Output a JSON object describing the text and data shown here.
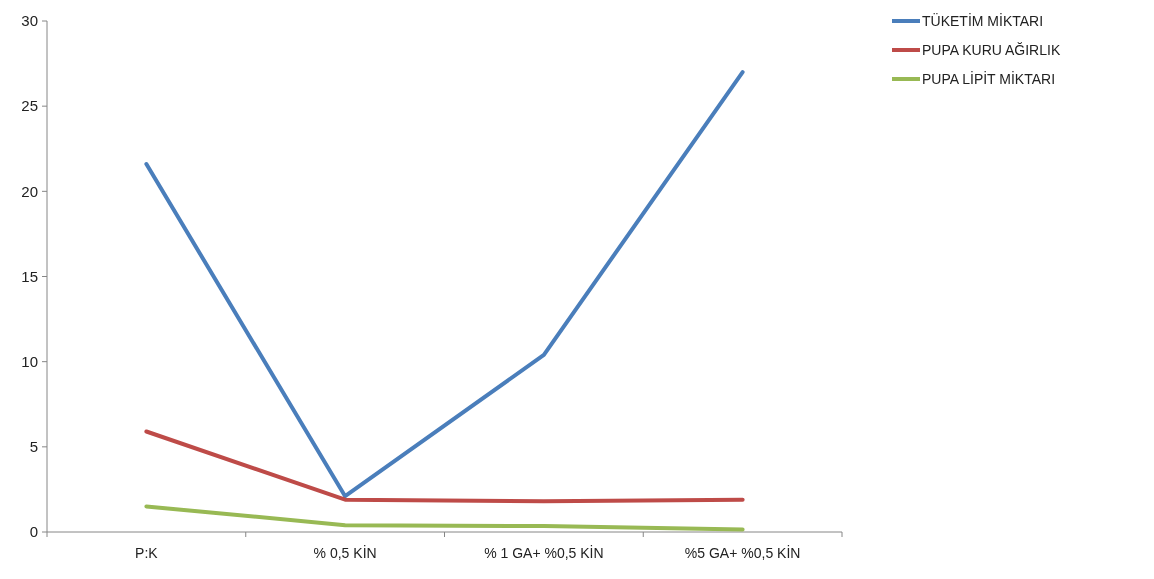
{
  "chart_data": {
    "type": "line",
    "categories": [
      "P:K",
      "% 0,5 KİN",
      "% 1 GA+ %0,5 KİN",
      "%5 GA+ %0,5 KİN"
    ],
    "series": [
      {
        "name": "TÜKETİM MİKTARI",
        "color": "#4a7ebb",
        "values": [
          21.6,
          2.1,
          10.4,
          27.0
        ]
      },
      {
        "name": "PUPA KURU AĞIRLIK",
        "color": "#be4b48",
        "values": [
          5.9,
          1.9,
          1.8,
          1.9
        ]
      },
      {
        "name": "PUPA LİPİT MİKTARI",
        "color": "#98b954",
        "values": [
          1.5,
          0.4,
          0.35,
          0.15
        ]
      }
    ],
    "ylim": [
      0,
      30
    ],
    "yticks": [
      0,
      5,
      10,
      15,
      20,
      25,
      30
    ],
    "grid": false,
    "legend": "right",
    "marker": "none",
    "line_style": "solid"
  }
}
